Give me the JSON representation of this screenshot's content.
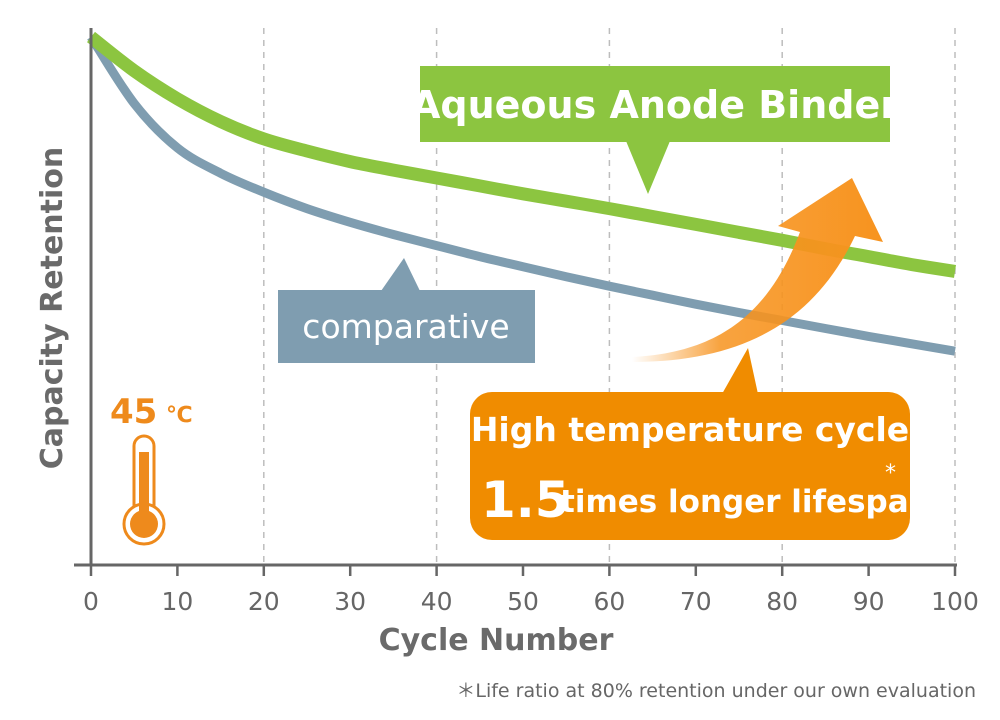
{
  "chart_data": {
    "type": "line",
    "title": "",
    "xlabel": "Cycle Number",
    "ylabel": "Capacity Retention",
    "xlim": [
      0,
      100
    ],
    "x_ticks": [
      0,
      10,
      20,
      30,
      40,
      50,
      60,
      70,
      80,
      90,
      100
    ],
    "grid": "vertical dashed gridlines at every 20 cycles from 20 to 100",
    "y_tick_labels_shown": false,
    "series": [
      {
        "name": "Aqueous Anode Binder",
        "color": "#8cc540",
        "x": [
          0,
          5,
          10,
          15,
          20,
          25,
          30,
          35,
          40,
          45,
          50,
          55,
          60,
          65,
          70,
          75,
          80,
          85,
          90,
          95,
          100
        ],
        "y": [
          100,
          93.6,
          88.3,
          84.0,
          80.7,
          78.4,
          76.4,
          74.8,
          73.3,
          71.8,
          70.3,
          68.9,
          67.5,
          66.0,
          64.5,
          63.0,
          61.5,
          59.9,
          58.4,
          56.9,
          55.6
        ]
      },
      {
        "name": "comparative",
        "color": "#7f9db0",
        "x": [
          0,
          5,
          10,
          15,
          20,
          25,
          30,
          35,
          40,
          45,
          50,
          55,
          60,
          65,
          70,
          75,
          80,
          85,
          90,
          95,
          100
        ],
        "y": [
          100,
          87.4,
          79.0,
          74.2,
          70.6,
          67.5,
          64.9,
          62.6,
          60.5,
          58.4,
          56.5,
          54.6,
          52.8,
          51.1,
          49.4,
          47.8,
          46.3,
          44.8,
          43.3,
          41.9,
          40.5
        ]
      }
    ],
    "annotations": {
      "temperature": {
        "value": "45",
        "unit": "℃",
        "icon": "thermometer-icon"
      },
      "highlight": {
        "line1": "High temperature cycle",
        "ratio": "1.5",
        "line2_rest": "times longer lifespan",
        "asterisk": "*",
        "color": "#f08c00",
        "arrow_icon": "curved-up-arrow-icon"
      },
      "footnote": "＊Life ratio at 80% retention under our own evaluation"
    }
  }
}
